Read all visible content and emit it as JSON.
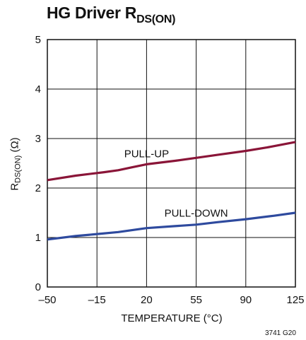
{
  "chart_data": {
    "type": "line",
    "title": {
      "main": "HG Driver R",
      "sub": "DS(ON)"
    },
    "xlabel": "TEMPERATURE (°C)",
    "ylabel": {
      "main": "R",
      "sub": "DS(ON)",
      "suffix": " (Ω)"
    },
    "x_ticks": [
      -50,
      -15,
      20,
      55,
      90,
      125
    ],
    "x_tick_labels": [
      "–50",
      "–15",
      "20",
      "55",
      "90",
      "125"
    ],
    "y_ticks": [
      0,
      1,
      2,
      3,
      4,
      5
    ],
    "y_tick_labels": [
      "0",
      "1",
      "2",
      "3",
      "4",
      "5"
    ],
    "xlim": [
      -50,
      125
    ],
    "ylim": [
      0,
      5
    ],
    "grid": true,
    "series": [
      {
        "label": "PULL-UP",
        "color": "#8a1538",
        "x": [
          -50,
          -30,
          -10,
          0,
          10,
          20,
          40,
          55,
          70,
          90,
          105,
          125
        ],
        "y": [
          2.16,
          2.25,
          2.32,
          2.36,
          2.42,
          2.48,
          2.55,
          2.61,
          2.67,
          2.75,
          2.82,
          2.93
        ]
      },
      {
        "label": "PULL-DOWN",
        "color": "#2e4a9e",
        "x": [
          -50,
          -30,
          -15,
          0,
          20,
          40,
          55,
          70,
          90,
          110,
          125
        ],
        "y": [
          0.96,
          1.03,
          1.07,
          1.11,
          1.19,
          1.23,
          1.26,
          1.31,
          1.37,
          1.44,
          1.5
        ]
      }
    ],
    "annotations": [
      {
        "text": "PULL-UP",
        "x": 20,
        "y": 2.62
      },
      {
        "text": "PULL-DOWN",
        "x": 55,
        "y": 1.42
      }
    ],
    "figure_code": "3741 G20"
  }
}
